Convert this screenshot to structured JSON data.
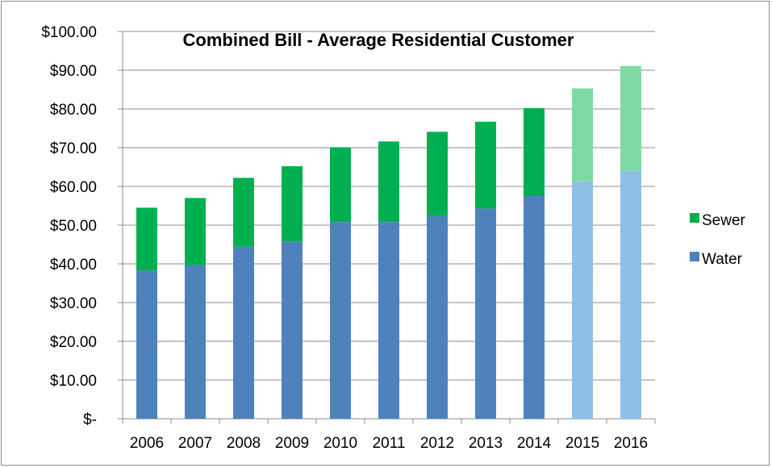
{
  "chart_data": {
    "type": "bar",
    "stacked": true,
    "title": "Combined Bill - Average Residential Customer",
    "categories": [
      "2006",
      "2007",
      "2008",
      "2009",
      "2010",
      "2011",
      "2012",
      "2013",
      "2014",
      "2015",
      "2016"
    ],
    "series": [
      {
        "name": "Water",
        "values": [
          38.3,
          39.7,
          44.4,
          45.8,
          50.8,
          50.8,
          52.5,
          54.3,
          57.5,
          61.3,
          64.0
        ],
        "color": "#4f81bd",
        "projected_color": "#8fbfe6"
      },
      {
        "name": "Sewer",
        "values": [
          16.2,
          17.3,
          17.8,
          19.4,
          19.3,
          20.8,
          21.6,
          22.4,
          22.7,
          24.0,
          27.1
        ],
        "color": "#00b050",
        "projected_color": "#7fd9a2"
      }
    ],
    "projected_categories": [
      "2015",
      "2016"
    ],
    "ylim": [
      0,
      100
    ],
    "ytick_step": 10,
    "ytick_labels": [
      "$-",
      "$10.00",
      "$20.00",
      "$30.00",
      "$40.00",
      "$50.00",
      "$60.00",
      "$70.00",
      "$80.00",
      "$90.00",
      "$100.00"
    ],
    "xlabel": "",
    "ylabel": "",
    "grid": true,
    "legend": "right",
    "legend_entries": [
      "Sewer",
      "Water"
    ]
  }
}
